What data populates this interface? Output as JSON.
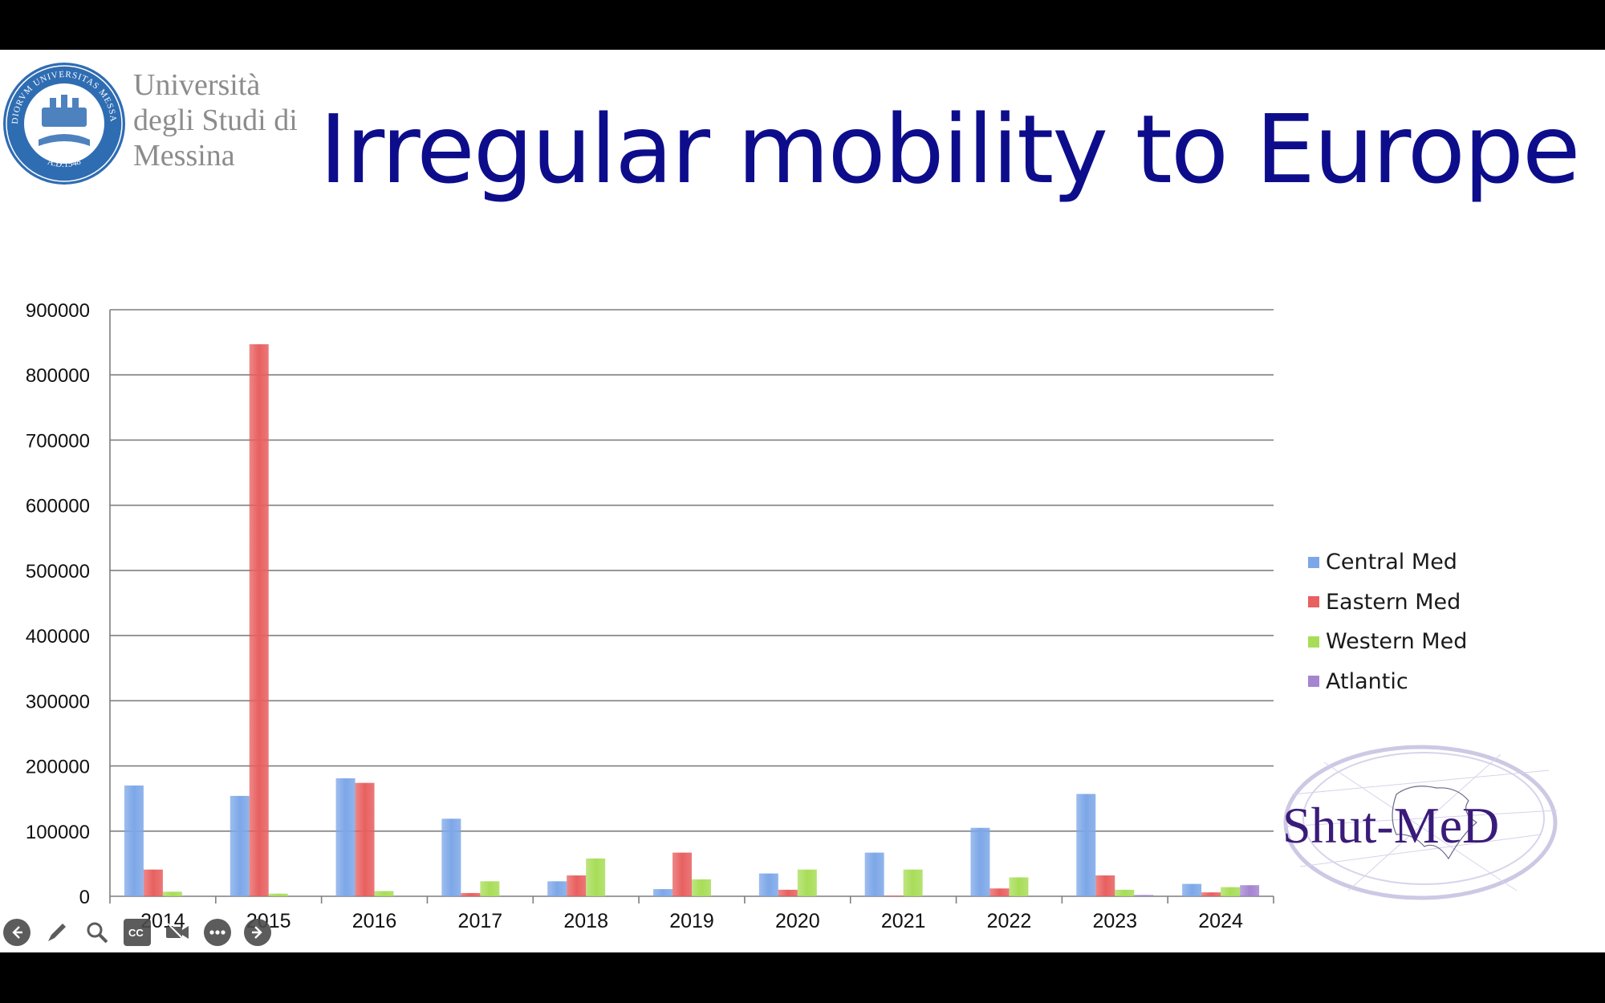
{
  "header": {
    "university": [
      "Università",
      "degli Studi di",
      "Messina"
    ],
    "seal_text_top": "STUDIORVM UNIVERSITAS MESSANAE",
    "seal_text_bottom": "A.D.1548",
    "title": "Irregular mobility to Europe"
  },
  "colors": {
    "title": "#0d0d8c",
    "central_med": "#7da7e8",
    "eastern_med": "#e86060",
    "western_med": "#a8dd58",
    "atlantic": "#a485d0",
    "shutmed": "#3a1b79"
  },
  "chart_data": {
    "type": "bar",
    "title": "",
    "xlabel": "",
    "ylabel": "",
    "ylim": [
      0,
      900000
    ],
    "yticks": [
      "0",
      "100000",
      "200000",
      "300000",
      "400000",
      "500000",
      "600000",
      "700000",
      "800000",
      "900000"
    ],
    "grid": true,
    "legend_position": "right",
    "categories": [
      "2014",
      "2015",
      "2016",
      "2017",
      "2018",
      "2019",
      "2020",
      "2021",
      "2022",
      "2023",
      "2024"
    ],
    "series": [
      {
        "name": "Central Med",
        "values": [
          170000,
          154000,
          181000,
          119000,
          23000,
          11000,
          35000,
          67000,
          105000,
          157000,
          19000
        ]
      },
      {
        "name": "Eastern Med",
        "values": [
          41000,
          847000,
          174000,
          5000,
          32000,
          67000,
          10000,
          1000,
          12000,
          32000,
          6000
        ]
      },
      {
        "name": "Western Med",
        "values": [
          7000,
          4000,
          8000,
          23000,
          58000,
          26000,
          41000,
          41000,
          29000,
          10000,
          14000
        ]
      },
      {
        "name": "Atlantic",
        "values": [
          0,
          0,
          0,
          0,
          0,
          0,
          0,
          0,
          0,
          2000,
          17000
        ]
      }
    ]
  },
  "legend": {
    "items": [
      "Central Med",
      "Eastern Med",
      "Western Med",
      "Atlantic"
    ]
  },
  "branding": {
    "shutmed_logo": "Shut-MeD"
  },
  "controls": [
    {
      "icon": "arrow-left-icon"
    },
    {
      "icon": "pen-icon"
    },
    {
      "icon": "zoom-icon"
    },
    {
      "icon": "captions-icon"
    },
    {
      "icon": "video-off-icon"
    },
    {
      "icon": "more-icon"
    },
    {
      "icon": "arrow-right-icon"
    }
  ]
}
